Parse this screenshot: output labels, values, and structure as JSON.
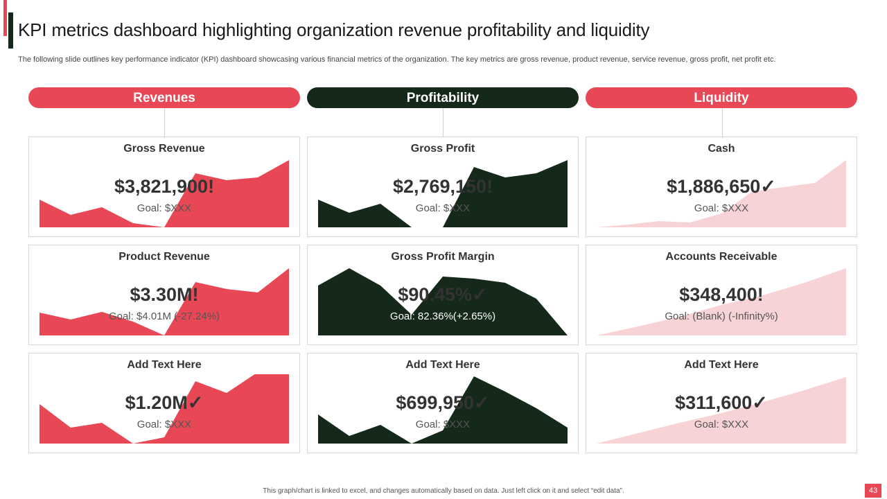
{
  "header": {
    "title": "KPI metrics dashboard highlighting organization revenue profitability and liquidity",
    "subtitle": "The following slide outlines key performance indicator (KPI) dashboard showcasing various financial metrics of the organization. The key metrics are gross revenue, product revenue, service revenue, gross profit, net profit etc."
  },
  "colors": {
    "red": "#e84855",
    "dark": "#15291a",
    "pink": "#f8d3d6"
  },
  "columns": [
    {
      "label": "Revenues",
      "cards": [
        {
          "title": "Gross Revenue",
          "value": "$3,821,900!",
          "goal": "Goal: $XXX"
        },
        {
          "title": "Product Revenue",
          "value": "$3.30M!",
          "goal": "Goal: $4.01M (-27.24%)"
        },
        {
          "title": "Add Text Here",
          "value": "$1.20M✓",
          "goal": "Goal: $XXX"
        }
      ]
    },
    {
      "label": "Profitability",
      "cards": [
        {
          "title": "Gross Profit",
          "value": "$2,769,150!",
          "goal": "Goal: $XXX"
        },
        {
          "title": "Gross Profit Margin",
          "value": "$90.45%✓",
          "goal": "Goal: 82.36%(+2.65%)"
        },
        {
          "title": "Add Text Here",
          "value": "$699,950✓",
          "goal": "Goal: $XXX"
        }
      ]
    },
    {
      "label": "Liquidity",
      "cards": [
        {
          "title": "Cash",
          "value": "$1,886,650✓",
          "goal": "Goal: $XXX"
        },
        {
          "title": "Accounts Receivable",
          "value": "$348,400!",
          "goal": "Goal: (Blank) (-Infinity%)"
        },
        {
          "title": "Add Text Here",
          "value": "$311,600✓",
          "goal": "Goal: $XXX"
        }
      ]
    }
  ],
  "footer": {
    "note": "This graph/chart is linked to excel, and changes automatically based on data. Just left click on it and select “edit data”.",
    "page_number": "43"
  }
}
